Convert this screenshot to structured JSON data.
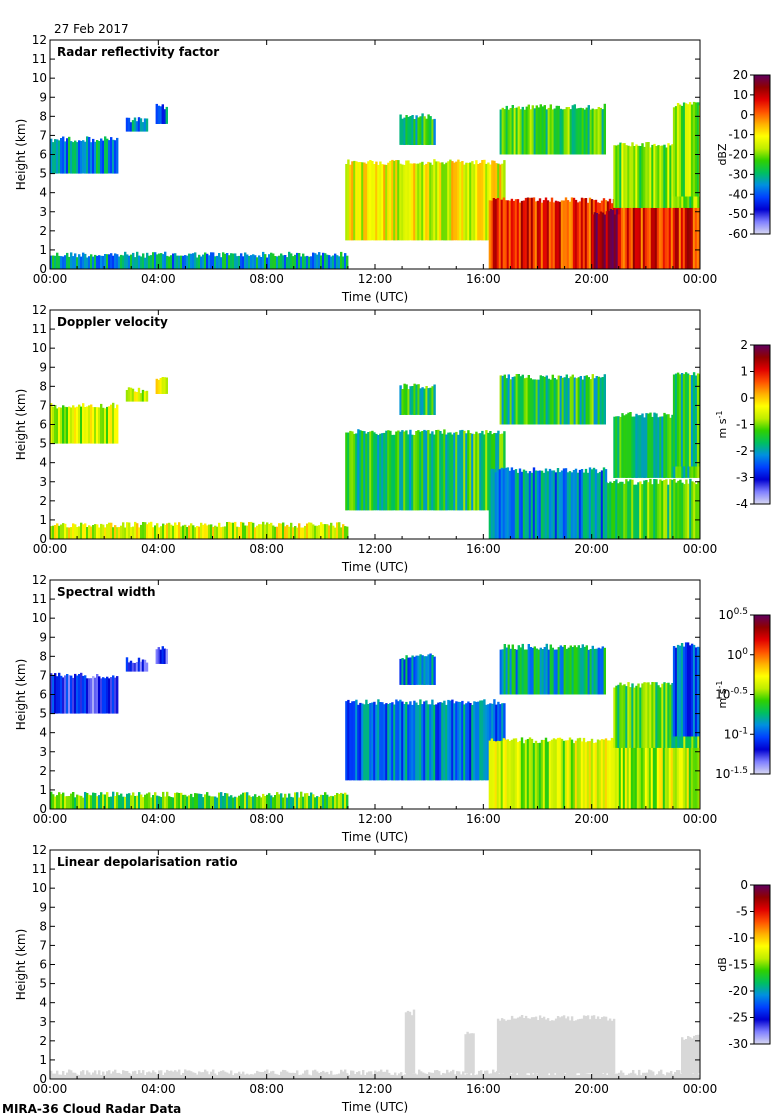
{
  "date": "27 Feb 2017",
  "footer": "MIRA-36 Cloud Radar Data",
  "colors": {
    "rainbow": [
      "#d8d8f0",
      "#8080ff",
      "#0000d0",
      "#0040ff",
      "#0090e0",
      "#00c060",
      "#30d000",
      "#c0ee00",
      "#ffff00",
      "#ffb000",
      "#ff5000",
      "#e00000",
      "#900000",
      "#600060"
    ],
    "gray_fill": "#d8d8d8"
  },
  "chart_data": [
    {
      "type": "heatmap",
      "title": "Radar reflectivity factor",
      "xlabel": "Time (UTC)",
      "ylabel": "Height (km)",
      "xlim": [
        0,
        24
      ],
      "ylim": [
        0,
        12
      ],
      "x_ticks": [
        "00:00",
        "04:00",
        "08:00",
        "12:00",
        "16:00",
        "20:00",
        "00:00"
      ],
      "y_ticks": [
        "0",
        "1",
        "2",
        "3",
        "4",
        "5",
        "6",
        "7",
        "8",
        "9",
        "10",
        "11",
        "12"
      ],
      "colorbar": {
        "unit": "dBZ",
        "range": [
          -60,
          20
        ],
        "ticks": [
          "20",
          "10",
          "0",
          "-10",
          "-20",
          "-30",
          "-40",
          "-50",
          "-60"
        ]
      },
      "regions": [
        {
          "t0": 0,
          "t1": 11.0,
          "h0": 0.0,
          "h1": 0.75,
          "val": 0.33
        },
        {
          "t0": 0,
          "t1": 2.5,
          "h0": 5.0,
          "h1": 6.8,
          "val": 0.32
        },
        {
          "t0": 2.8,
          "t1": 3.6,
          "h0": 7.2,
          "h1": 7.8,
          "val": 0.3
        },
        {
          "t0": 3.9,
          "t1": 4.3,
          "h0": 7.6,
          "h1": 8.5,
          "val": 0.28
        },
        {
          "t0": 10.9,
          "t1": 16.8,
          "h0": 1.5,
          "h1": 5.6,
          "val": 0.6
        },
        {
          "t0": 12.9,
          "t1": 14.2,
          "h0": 6.5,
          "h1": 8.0,
          "val": 0.4
        },
        {
          "t0": 16.6,
          "t1": 20.5,
          "h0": 6.0,
          "h1": 8.5,
          "val": 0.45
        },
        {
          "t0": 16.2,
          "t1": 24.0,
          "h0": 0.0,
          "h1": 3.6,
          "val": 0.82
        },
        {
          "t0": 20.0,
          "t1": 21.0,
          "h0": 0.0,
          "h1": 3.0,
          "val": 0.92
        },
        {
          "t0": 20.8,
          "t1": 24.0,
          "h0": 3.2,
          "h1": 6.5,
          "val": 0.5
        },
        {
          "t0": 23.0,
          "t1": 24.0,
          "h0": 3.8,
          "h1": 8.6,
          "val": 0.5
        }
      ]
    },
    {
      "type": "heatmap",
      "title": "Doppler velocity",
      "xlabel": "Time (UTC)",
      "ylabel": "Height (km)",
      "xlim": [
        0,
        24
      ],
      "ylim": [
        0,
        12
      ],
      "x_ticks": [
        "00:00",
        "04:00",
        "08:00",
        "12:00",
        "16:00",
        "20:00",
        "00:00"
      ],
      "y_ticks": [
        "0",
        "1",
        "2",
        "3",
        "4",
        "5",
        "6",
        "7",
        "8",
        "9",
        "10",
        "11",
        "12"
      ],
      "colorbar": {
        "unit": "m s-1",
        "range": [
          -4,
          2
        ],
        "ticks": [
          "2",
          "1",
          "0",
          "-1",
          "-2",
          "-3",
          "-4"
        ]
      },
      "regions": [
        {
          "t0": 0,
          "t1": 11.0,
          "h0": 0.0,
          "h1": 0.75,
          "val": 0.58
        },
        {
          "t0": 0,
          "t1": 2.5,
          "h0": 5.0,
          "h1": 7.0,
          "val": 0.56
        },
        {
          "t0": 2.8,
          "t1": 3.6,
          "h0": 7.2,
          "h1": 7.8,
          "val": 0.57
        },
        {
          "t0": 3.9,
          "t1": 4.3,
          "h0": 7.6,
          "h1": 8.5,
          "val": 0.58
        },
        {
          "t0": 10.9,
          "t1": 16.8,
          "h0": 1.5,
          "h1": 5.6,
          "val": 0.42
        },
        {
          "t0": 12.9,
          "t1": 14.2,
          "h0": 6.5,
          "h1": 8.0,
          "val": 0.42
        },
        {
          "t0": 16.6,
          "t1": 20.5,
          "h0": 6.0,
          "h1": 8.5,
          "val": 0.42
        },
        {
          "t0": 16.2,
          "t1": 20.5,
          "h0": 0.0,
          "h1": 3.6,
          "val": 0.3
        },
        {
          "t0": 20.5,
          "t1": 24.0,
          "h0": 0.0,
          "h1": 3.0,
          "val": 0.45
        },
        {
          "t0": 20.8,
          "t1": 24.0,
          "h0": 3.2,
          "h1": 6.5,
          "val": 0.42
        },
        {
          "t0": 23.0,
          "t1": 24.0,
          "h0": 3.8,
          "h1": 8.6,
          "val": 0.42
        }
      ]
    },
    {
      "type": "heatmap",
      "title": "Spectral width",
      "xlabel": "Time (UTC)",
      "ylabel": "Height (km)",
      "xlim": [
        0,
        24
      ],
      "ylim": [
        0,
        12
      ],
      "x_ticks": [
        "00:00",
        "04:00",
        "08:00",
        "12:00",
        "16:00",
        "20:00",
        "00:00"
      ],
      "y_ticks": [
        "0",
        "1",
        "2",
        "3",
        "4",
        "5",
        "6",
        "7",
        "8",
        "9",
        "10",
        "11",
        "12"
      ],
      "colorbar": {
        "unit": "m s-1",
        "range": [
          -1.5,
          0.5
        ],
        "log": true,
        "ticks": [
          "10^0.5",
          "10^0",
          "10^-0.5",
          "10^-1",
          "10^-1.5"
        ]
      },
      "regions": [
        {
          "t0": 0,
          "t1": 11.0,
          "h0": 0.0,
          "h1": 0.75,
          "val": 0.45
        },
        {
          "t0": 0,
          "t1": 2.5,
          "h0": 5.0,
          "h1": 7.0,
          "val": 0.15
        },
        {
          "t0": 2.8,
          "t1": 3.6,
          "h0": 7.2,
          "h1": 7.8,
          "val": 0.15
        },
        {
          "t0": 3.9,
          "t1": 4.3,
          "h0": 7.6,
          "h1": 8.5,
          "val": 0.15
        },
        {
          "t0": 10.9,
          "t1": 16.8,
          "h0": 1.5,
          "h1": 5.6,
          "val": 0.28
        },
        {
          "t0": 12.9,
          "t1": 14.2,
          "h0": 6.5,
          "h1": 8.0,
          "val": 0.3
        },
        {
          "t0": 16.6,
          "t1": 20.5,
          "h0": 6.0,
          "h1": 8.5,
          "val": 0.35
        },
        {
          "t0": 16.2,
          "t1": 24.0,
          "h0": 0.0,
          "h1": 3.6,
          "val": 0.55
        },
        {
          "t0": 20.8,
          "t1": 24.0,
          "h0": 3.2,
          "h1": 6.5,
          "val": 0.45
        },
        {
          "t0": 23.0,
          "t1": 24.0,
          "h0": 3.8,
          "h1": 8.6,
          "val": 0.25
        }
      ]
    },
    {
      "type": "heatmap",
      "title": "Linear depolarisation ratio",
      "xlabel": "Time (UTC)",
      "ylabel": "Height (km)",
      "xlim": [
        0,
        24
      ],
      "ylim": [
        0,
        12
      ],
      "x_ticks": [
        "00:00",
        "04:00",
        "08:00",
        "12:00",
        "16:00",
        "20:00",
        "00:00"
      ],
      "y_ticks": [
        "0",
        "1",
        "2",
        "3",
        "4",
        "5",
        "6",
        "7",
        "8",
        "9",
        "10",
        "11",
        "12"
      ],
      "colorbar": {
        "unit": "dB",
        "range": [
          -30,
          0
        ],
        "ticks": [
          "0",
          "-5",
          "-10",
          "-15",
          "-20",
          "-25",
          "-30"
        ]
      },
      "gray_regions": [
        {
          "t0": 0,
          "t1": 24.0,
          "h0": 0.0,
          "h1": 0.35
        },
        {
          "t0": 13.1,
          "t1": 13.4,
          "h0": 0.3,
          "h1": 3.5
        },
        {
          "t0": 15.3,
          "t1": 15.6,
          "h0": 0.3,
          "h1": 2.5
        },
        {
          "t0": 16.5,
          "t1": 20.8,
          "h0": 0.3,
          "h1": 3.2
        },
        {
          "t0": 23.3,
          "t1": 24.0,
          "h0": 0.3,
          "h1": 2.2
        }
      ]
    }
  ]
}
